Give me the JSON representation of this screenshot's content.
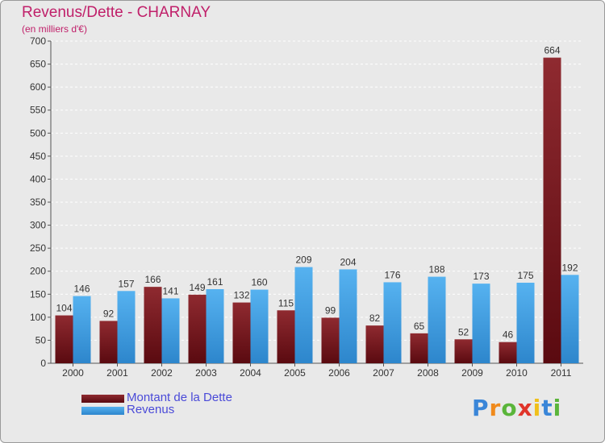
{
  "chart_data": {
    "type": "bar",
    "title": "Revenus/Dette - CHARNAY",
    "subtitle": "(en milliers d'€)",
    "categories": [
      "2000",
      "2001",
      "2002",
      "2003",
      "2004",
      "2005",
      "2006",
      "2007",
      "2008",
      "2009",
      "2010",
      "2011"
    ],
    "series": [
      {
        "name": "Montant de la Dette",
        "color": "#7a1a20",
        "values": [
          104,
          92,
          166,
          149,
          132,
          115,
          99,
          82,
          65,
          52,
          46,
          664
        ]
      },
      {
        "name": "Revenus",
        "color": "#3a9be0",
        "values": [
          146,
          157,
          141,
          161,
          160,
          209,
          204,
          176,
          188,
          173,
          175,
          192
        ]
      }
    ],
    "ylim": [
      0,
      700
    ],
    "yticks": [
      0,
      50,
      100,
      150,
      200,
      250,
      300,
      350,
      400,
      450,
      500,
      550,
      600,
      650,
      700
    ],
    "grid": true,
    "legend_position": "bottom-left"
  },
  "logo": {
    "text": "Proxiti",
    "letters": [
      "P",
      "r",
      "o",
      "x",
      "i",
      "t",
      "i"
    ],
    "colors": [
      "#3a86d8",
      "#f08a1c",
      "#5ab53a",
      "#e0342a",
      "#f0c01c",
      "#3a86d8",
      "#5ab53a"
    ]
  }
}
